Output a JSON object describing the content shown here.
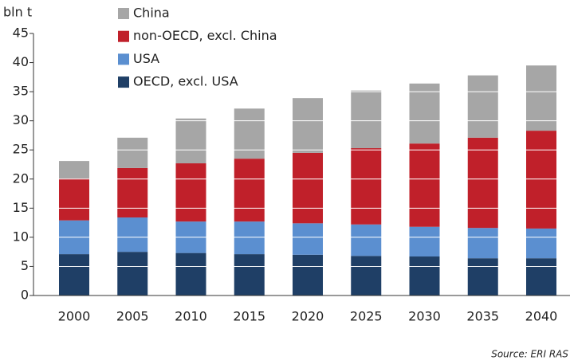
{
  "chart_data": {
    "type": "stacked_bar",
    "y_label": "bln t",
    "source": "Source: ERI RAS",
    "categories": [
      "2000",
      "2005",
      "2010",
      "2015",
      "2020",
      "2025",
      "2030",
      "2035",
      "2040"
    ],
    "series": [
      {
        "name": "OECD, excl. USA",
        "color": "#1f3f66",
        "values": [
          7.1,
          7.5,
          7.3,
          7.1,
          7.0,
          6.8,
          6.7,
          6.4,
          6.4
        ]
      },
      {
        "name": "USA",
        "color": "#5b8fd0",
        "values": [
          5.8,
          5.9,
          5.4,
          5.6,
          5.4,
          5.4,
          5.1,
          5.2,
          5.1
        ]
      },
      {
        "name": "non-OECD, excl. China",
        "color": "#c0202a",
        "values": [
          7.2,
          8.5,
          10.0,
          10.8,
          12.1,
          13.1,
          14.3,
          15.5,
          16.8
        ]
      },
      {
        "name": "China",
        "color": "#a6a6a6",
        "values": [
          3.0,
          5.2,
          7.7,
          8.6,
          9.4,
          9.9,
          10.3,
          10.7,
          11.2
        ]
      }
    ],
    "ylim": [
      0,
      45
    ],
    "yticks": [
      0,
      5,
      10,
      15,
      20,
      25,
      30,
      35,
      40,
      45
    ],
    "grid": true
  }
}
